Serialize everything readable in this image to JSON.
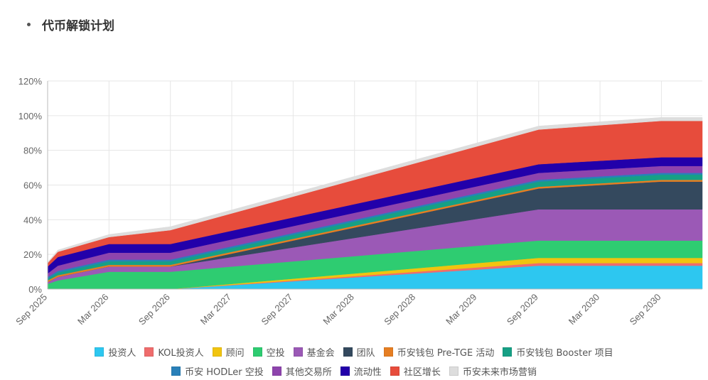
{
  "header": {
    "title": "代币解锁计划"
  },
  "chart_data": {
    "type": "area",
    "stacked": true,
    "title": "代币解锁计划",
    "xlabel": "",
    "ylabel": "",
    "ylim": [
      0,
      120
    ],
    "yticks": [
      "0%",
      "20%",
      "40%",
      "60%",
      "80%",
      "100%",
      "120%"
    ],
    "xticks": [
      "Sep 2025",
      "Mar 2026",
      "Sep 2026",
      "Mar 2027",
      "Sep 2027",
      "Mar 2028",
      "Sep 2028",
      "Mar 2029",
      "Sep 2029",
      "Mar 2030",
      "Sep 2030"
    ],
    "x": [
      "2025-09",
      "2025-10",
      "2026-03",
      "2026-09",
      "2029-09",
      "2030-09",
      "2031-01"
    ],
    "grid": true,
    "legend_position": "bottom",
    "series": [
      {
        "name": "投资人",
        "color": "#2dc7f0",
        "values": [
          0,
          0,
          0,
          0,
          13.5,
          13.5,
          13.5
        ]
      },
      {
        "name": "KOL投资人",
        "color": "#ef6c6c",
        "values": [
          0,
          0,
          0,
          0,
          1.5,
          1.5,
          1.5
        ]
      },
      {
        "name": "顾问",
        "color": "#f1c40f",
        "values": [
          0,
          0,
          0,
          0,
          3,
          3,
          3
        ]
      },
      {
        "name": "空投",
        "color": "#2ecc71",
        "values": [
          3,
          5,
          10,
          10,
          10,
          10,
          10
        ]
      },
      {
        "name": "基金会",
        "color": "#9b59b6",
        "values": [
          1,
          2,
          3,
          3,
          18,
          18,
          18
        ]
      },
      {
        "name": "团队",
        "color": "#34495e",
        "values": [
          0,
          0,
          0,
          0,
          12,
          16,
          16
        ]
      },
      {
        "name": "币安钱包 Pre-TGE 活动",
        "color": "#e67e22",
        "values": [
          1,
          1,
          1,
          1,
          1,
          1,
          1
        ]
      },
      {
        "name": "币安钱包 Booster 项目",
        "color": "#16a085",
        "values": [
          1,
          1.5,
          2,
          2,
          3,
          3,
          3
        ]
      },
      {
        "name": "币安 HODLer 空投",
        "color": "#2980b9",
        "values": [
          1,
          1,
          1,
          1,
          1,
          1,
          1
        ]
      },
      {
        "name": "其他交易所",
        "color": "#8e44ad",
        "values": [
          2,
          3,
          4,
          4,
          4,
          4,
          4
        ]
      },
      {
        "name": "流动性",
        "color": "#2200aa",
        "values": [
          4,
          5,
          5,
          5,
          5,
          5,
          5
        ]
      },
      {
        "name": "社区增长",
        "color": "#e74c3c",
        "values": [
          2,
          3,
          4,
          8,
          20,
          21,
          21
        ]
      },
      {
        "name": "币安未来市场营销",
        "color": "#dddddd",
        "values": [
          0.5,
          1,
          1.5,
          2,
          2,
          2,
          2
        ]
      }
    ]
  }
}
